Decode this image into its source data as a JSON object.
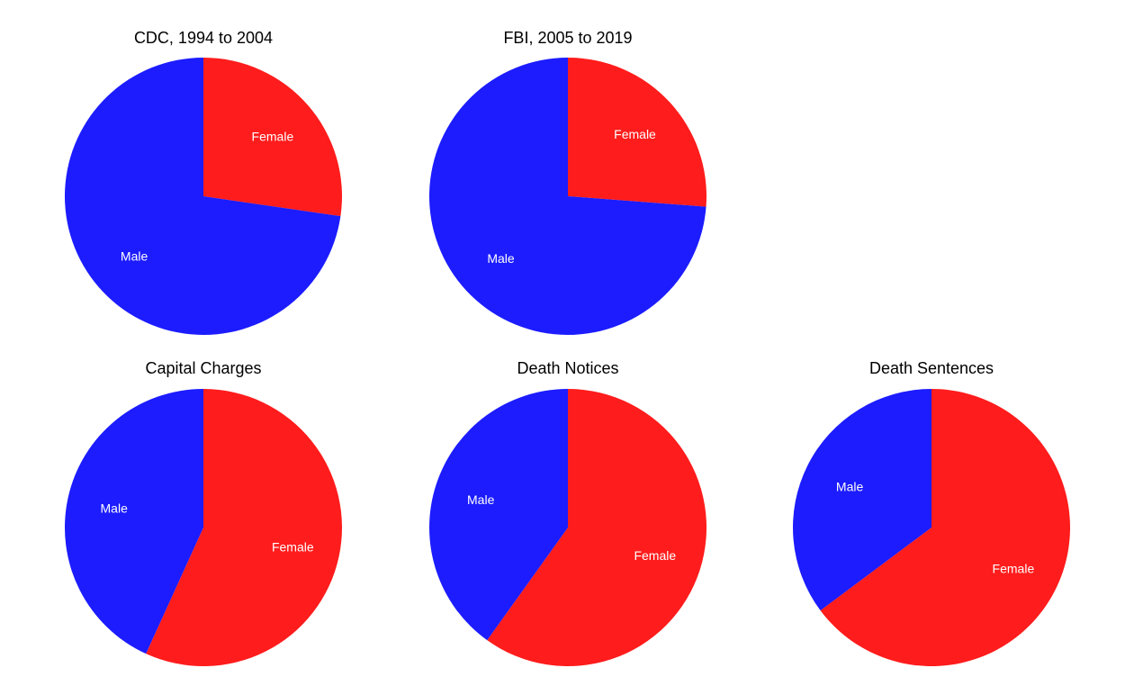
{
  "colors": {
    "Female": "#ff1c1c",
    "Male": "#1c1cff",
    "label": "#ffffff",
    "title": "#000000",
    "background": "#ffffff"
  },
  "chart_data": [
    {
      "type": "pie",
      "title": "CDC, 1994 to 2004",
      "start_angle_deg": 0,
      "direction": "clockwise",
      "slices": [
        {
          "label": "Female",
          "value": 0.273
        },
        {
          "label": "Male",
          "value": 0.727
        }
      ]
    },
    {
      "type": "pie",
      "title": "FBI, 2005 to 2019",
      "start_angle_deg": 0,
      "direction": "clockwise",
      "slices": [
        {
          "label": "Female",
          "value": 0.262
        },
        {
          "label": "Male",
          "value": 0.738
        }
      ]
    },
    {
      "type": "pie",
      "title": "Capital Charges",
      "start_angle_deg": 0,
      "direction": "clockwise",
      "slices": [
        {
          "label": "Female",
          "value": 0.568
        },
        {
          "label": "Male",
          "value": 0.432
        }
      ]
    },
    {
      "type": "pie",
      "title": "Death Notices",
      "start_angle_deg": 0,
      "direction": "clockwise",
      "slices": [
        {
          "label": "Female",
          "value": 0.599
        },
        {
          "label": "Male",
          "value": 0.401
        }
      ]
    },
    {
      "type": "pie",
      "title": "Death Sentences",
      "start_angle_deg": 0,
      "direction": "clockwise",
      "slices": [
        {
          "label": "Female",
          "value": 0.648
        },
        {
          "label": "Male",
          "value": 0.352
        }
      ]
    }
  ]
}
